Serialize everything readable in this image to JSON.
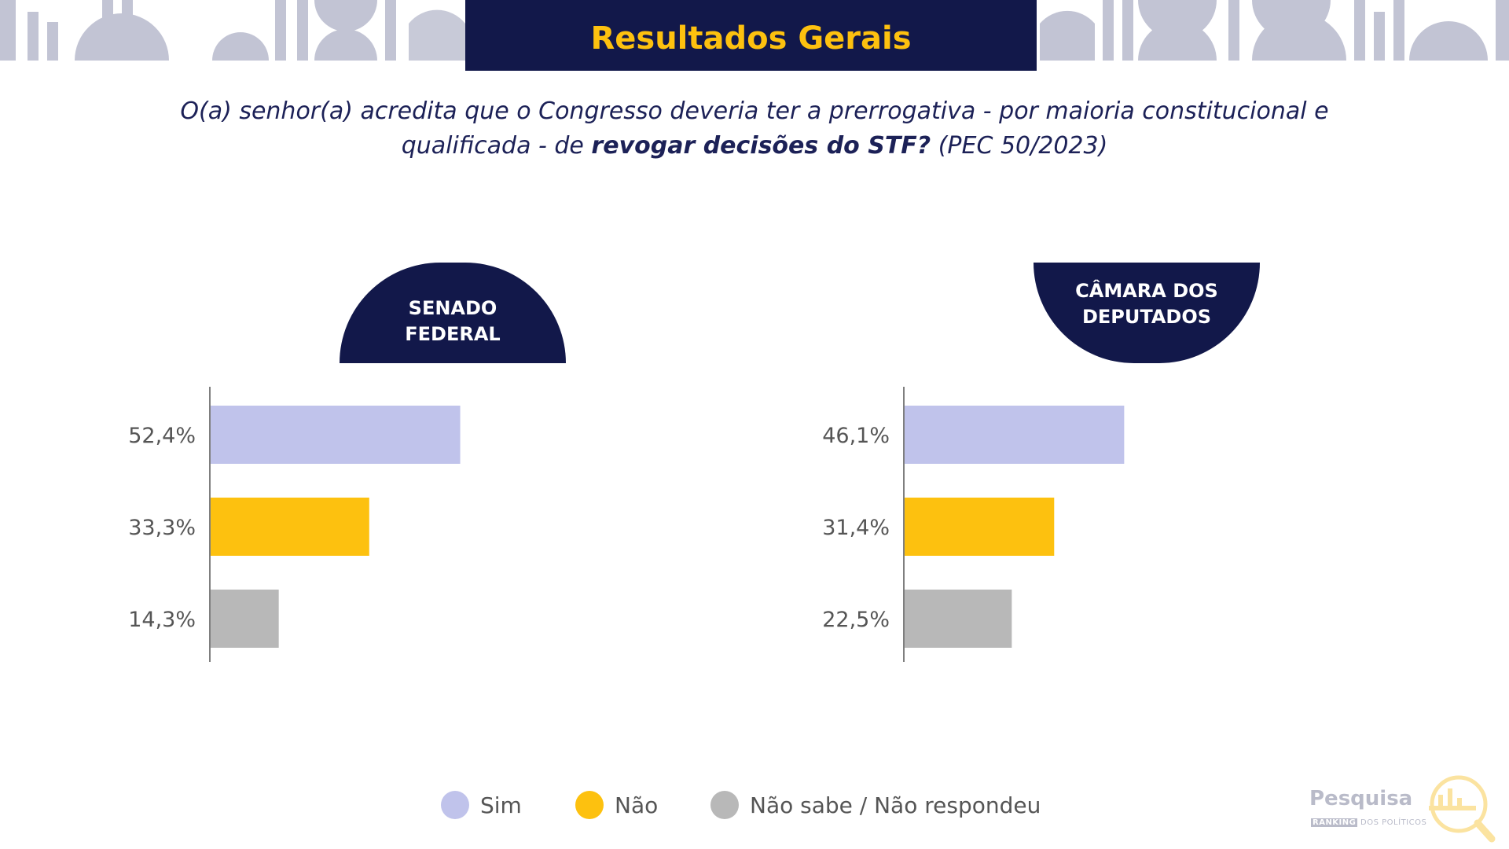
{
  "header": {
    "title": "Resultados Gerais"
  },
  "question": {
    "part1": "O(a) senhor(a) acredita que o Congresso deveria ter a prerrogativa - por maioria constitucional e qualificada - de ",
    "bold": "revogar decisões do STF?",
    "part2": " (PEC 50/2023)"
  },
  "colors": {
    "navy": "#12184a",
    "yellow": "#fdc10f",
    "sim": "#c0c3eb",
    "nao": "#fdc10f",
    "ns": "#b8b8b8",
    "decor": "#c2c4d4"
  },
  "chart_data": [
    {
      "type": "bar",
      "orientation": "horizontal",
      "title_line1": "SENADO",
      "title_line2": "FEDERAL",
      "categories": [
        "Sim",
        "Não",
        "Não sabe / Não respondeu"
      ],
      "values": [
        52.4,
        33.3,
        14.3
      ],
      "value_labels": [
        "52,4%",
        "33,3%",
        "14,3%"
      ],
      "xlim": [
        0,
        100
      ]
    },
    {
      "type": "bar",
      "orientation": "horizontal",
      "title_line1": "CÂMARA DOS",
      "title_line2": "DEPUTADOS",
      "categories": [
        "Sim",
        "Não",
        "Não sabe / Não respondeu"
      ],
      "values": [
        46.1,
        31.4,
        22.5
      ],
      "value_labels": [
        "46,1%",
        "31,4%",
        "22,5%"
      ],
      "xlim": [
        0,
        100
      ]
    }
  ],
  "legend": [
    {
      "label": "Sim",
      "color": "#c0c3eb"
    },
    {
      "label": "Não",
      "color": "#fdc10f"
    },
    {
      "label": "Não sabe / Não respondeu",
      "color": "#b8b8b8"
    }
  ],
  "logo": {
    "word": "Pesquisa",
    "tag": "RANKING",
    "sub": "DOS POLÍTICOS"
  }
}
